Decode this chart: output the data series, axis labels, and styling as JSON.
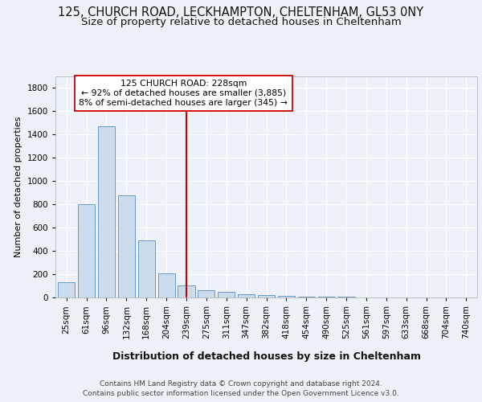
{
  "title1": "125, CHURCH ROAD, LECKHAMPTON, CHELTENHAM, GL53 0NY",
  "title2": "Size of property relative to detached houses in Cheltenham",
  "xlabel": "Distribution of detached houses by size in Cheltenham",
  "ylabel": "Number of detached properties",
  "categories": [
    "25sqm",
    "61sqm",
    "96sqm",
    "132sqm",
    "168sqm",
    "204sqm",
    "239sqm",
    "275sqm",
    "311sqm",
    "347sqm",
    "382sqm",
    "418sqm",
    "454sqm",
    "490sqm",
    "525sqm",
    "561sqm",
    "597sqm",
    "633sqm",
    "668sqm",
    "704sqm",
    "740sqm"
  ],
  "values": [
    130,
    800,
    1470,
    880,
    490,
    205,
    105,
    65,
    45,
    30,
    20,
    15,
    8,
    6,
    4,
    3,
    2,
    1,
    1,
    1,
    1
  ],
  "bar_color": "#cddcec",
  "bar_edge_color": "#6699cc",
  "red_line_index": 6,
  "red_line_color": "#cc0000",
  "annotation_text": "125 CHURCH ROAD: 228sqm\n← 92% of detached houses are smaller (3,885)\n8% of semi-detached houses are larger (345) →",
  "annotation_box_color": "#ffffff",
  "annotation_box_edge": "#cc0000",
  "ylim": [
    0,
    1900
  ],
  "yticks": [
    0,
    200,
    400,
    600,
    800,
    1000,
    1200,
    1400,
    1600,
    1800
  ],
  "footnote": "Contains HM Land Registry data © Crown copyright and database right 2024.\nContains public sector information licensed under the Open Government Licence v3.0.",
  "bg_color": "#eef2f8",
  "grid_color": "#ffffff",
  "title1_fontsize": 10.5,
  "title2_fontsize": 9.5,
  "ylabel_fontsize": 8,
  "xlabel_fontsize": 9,
  "tick_fontsize": 7.5,
  "footnote_fontsize": 6.5,
  "ann_fontsize": 7.8
}
